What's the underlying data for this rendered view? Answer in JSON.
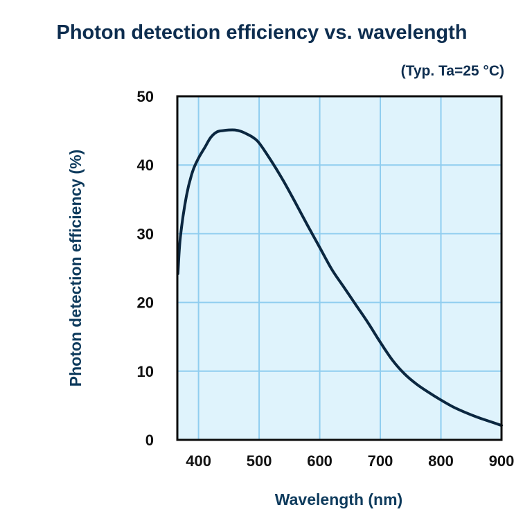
{
  "chart_data": {
    "type": "line",
    "title": "Photon detection efficiency vs. wavelength",
    "subtitle": "(Typ. Ta=25 °C)",
    "xlabel": "Wavelength (nm)",
    "ylabel": "Photon detection efficiency (%)",
    "xlim": [
      365,
      900
    ],
    "ylim": [
      0,
      50
    ],
    "xticks": [
      400,
      500,
      600,
      700,
      800,
      900
    ],
    "yticks": [
      0,
      10,
      20,
      30,
      40,
      50
    ],
    "xtick_labels": [
      "400",
      "500",
      "600",
      "700",
      "800",
      "900"
    ],
    "ytick_labels": [
      "0",
      "10",
      "20",
      "30",
      "40",
      "50"
    ],
    "grid": true,
    "legend": "none",
    "colors": {
      "plot_background": "#dff3fc",
      "grid": "#8fcdef",
      "line": "#0b2740",
      "frame": "#0a0a0a",
      "title": "#0d2d4f",
      "axis_label": "#0d3a5c",
      "tick_label": "#111111"
    },
    "series": [
      {
        "x": [
          366,
          370,
          380,
          390,
          400,
          410,
          420,
          430,
          440,
          450,
          460,
          470,
          480,
          490,
          500,
          520,
          540,
          560,
          580,
          600,
          620,
          640,
          660,
          680,
          700,
          720,
          740,
          760,
          780,
          800,
          820,
          840,
          860,
          880,
          900
        ],
        "y": [
          24.2,
          29.5,
          35.5,
          39.0,
          41.0,
          42.5,
          44.0,
          44.8,
          45.0,
          45.1,
          45.1,
          44.9,
          44.5,
          44.0,
          43.2,
          40.6,
          37.7,
          34.5,
          31.2,
          28.0,
          24.8,
          22.2,
          19.6,
          17.0,
          14.2,
          11.6,
          9.6,
          8.1,
          6.9,
          5.8,
          4.8,
          4.0,
          3.3,
          2.7,
          2.1
        ]
      }
    ]
  }
}
